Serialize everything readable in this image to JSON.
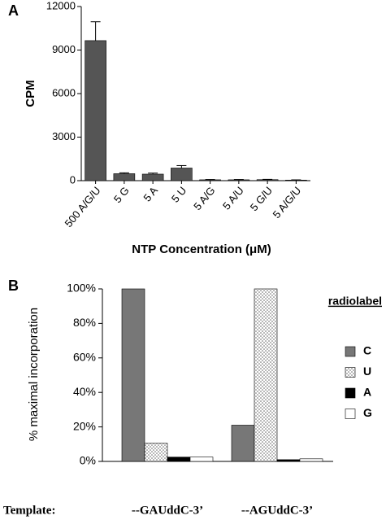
{
  "chart_data": [
    {
      "type": "bar",
      "panel": "A",
      "categories": [
        "500 A/G/U",
        "5 G",
        "5 A",
        "5 U",
        "5 A/G",
        "5 A/U",
        "5 G/U",
        "5 A/G/U"
      ],
      "values": [
        9650,
        480,
        450,
        870,
        60,
        60,
        70,
        40
      ],
      "errors": [
        1300,
        60,
        70,
        170,
        20,
        20,
        20,
        15
      ],
      "color": "#555555",
      "y_label": "CPM",
      "x_label": "NTP Concentration (μM)",
      "ylim": [
        0,
        12000
      ],
      "yticks": [
        0,
        3000,
        6000,
        9000,
        12000
      ]
    },
    {
      "type": "grouped_bar",
      "panel": "B",
      "x_label": "Template:",
      "categories": [
        "--GAUddC-3’",
        "--AGUddC-3’"
      ],
      "series": [
        {
          "name": "C",
          "color": "#777777",
          "values": [
            100,
            21
          ]
        },
        {
          "name": "U",
          "color": "#ffffff",
          "pattern": "dots",
          "values": [
            10.5,
            100
          ]
        },
        {
          "name": "A",
          "color": "#000000",
          "values": [
            2.5,
            1
          ]
        },
        {
          "name": "G",
          "color": "#ffffff",
          "values": [
            2.5,
            1.5
          ]
        }
      ],
      "y_label": "% maximal incorporation",
      "legend_title": "radiolabel",
      "ylim": [
        0,
        100
      ],
      "yticks": [
        {
          "value": 0,
          "label": "0%"
        },
        {
          "value": 20,
          "label": "20%"
        },
        {
          "value": 40,
          "label": "40%"
        },
        {
          "value": 60,
          "label": "60%"
        },
        {
          "value": 80,
          "label": "80%"
        },
        {
          "value": 100,
          "label": "100%"
        }
      ]
    }
  ]
}
